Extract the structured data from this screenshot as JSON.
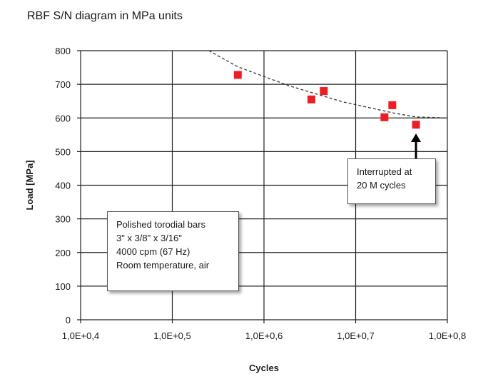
{
  "chart_data": {
    "type": "scatter",
    "title": "RBF S/N diagram in MPa units",
    "xlabel": "Cycles",
    "ylabel": "Load [MPa]",
    "x_scale": "log10",
    "xlim": [
      25118.9,
      630957.3
    ],
    "ylim": [
      0,
      800
    ],
    "x_ticks": [
      "1,0E+0,4",
      "1,0E+0,5",
      "1,0E+0,6",
      "1,0E+0,7",
      "1,0E+0,8"
    ],
    "y_ticks": [
      "0",
      "100",
      "200",
      "300",
      "400",
      "500",
      "600",
      "700",
      "800"
    ],
    "grid": true,
    "marker_color": "#ee1c25",
    "points": [
      {
        "x": 100000,
        "y": 728
      },
      {
        "x": 191000,
        "y": 655
      },
      {
        "x": 213000,
        "y": 680
      },
      {
        "x": 363000,
        "y": 602
      },
      {
        "x": 389000,
        "y": 638
      },
      {
        "x": 479000,
        "y": 580
      }
    ],
    "trendline": {
      "style": "dashed",
      "points": [
        {
          "x": 77600,
          "y": 800
        },
        {
          "x": 100000,
          "y": 752
        },
        {
          "x": 158000,
          "y": 695
        },
        {
          "x": 251000,
          "y": 648
        },
        {
          "x": 398000,
          "y": 614
        },
        {
          "x": 479000,
          "y": 603
        },
        {
          "x": 631000,
          "y": 600
        }
      ]
    },
    "annotations": {
      "specimen": [
        "Polished torodial bars",
        "3\" x  3/8\" x 3/16\"",
        "4000 cpm (67 Hz)",
        "Room temperature, air"
      ],
      "interrupted": [
        "Interrupted at",
        "20 M cycles"
      ]
    }
  }
}
